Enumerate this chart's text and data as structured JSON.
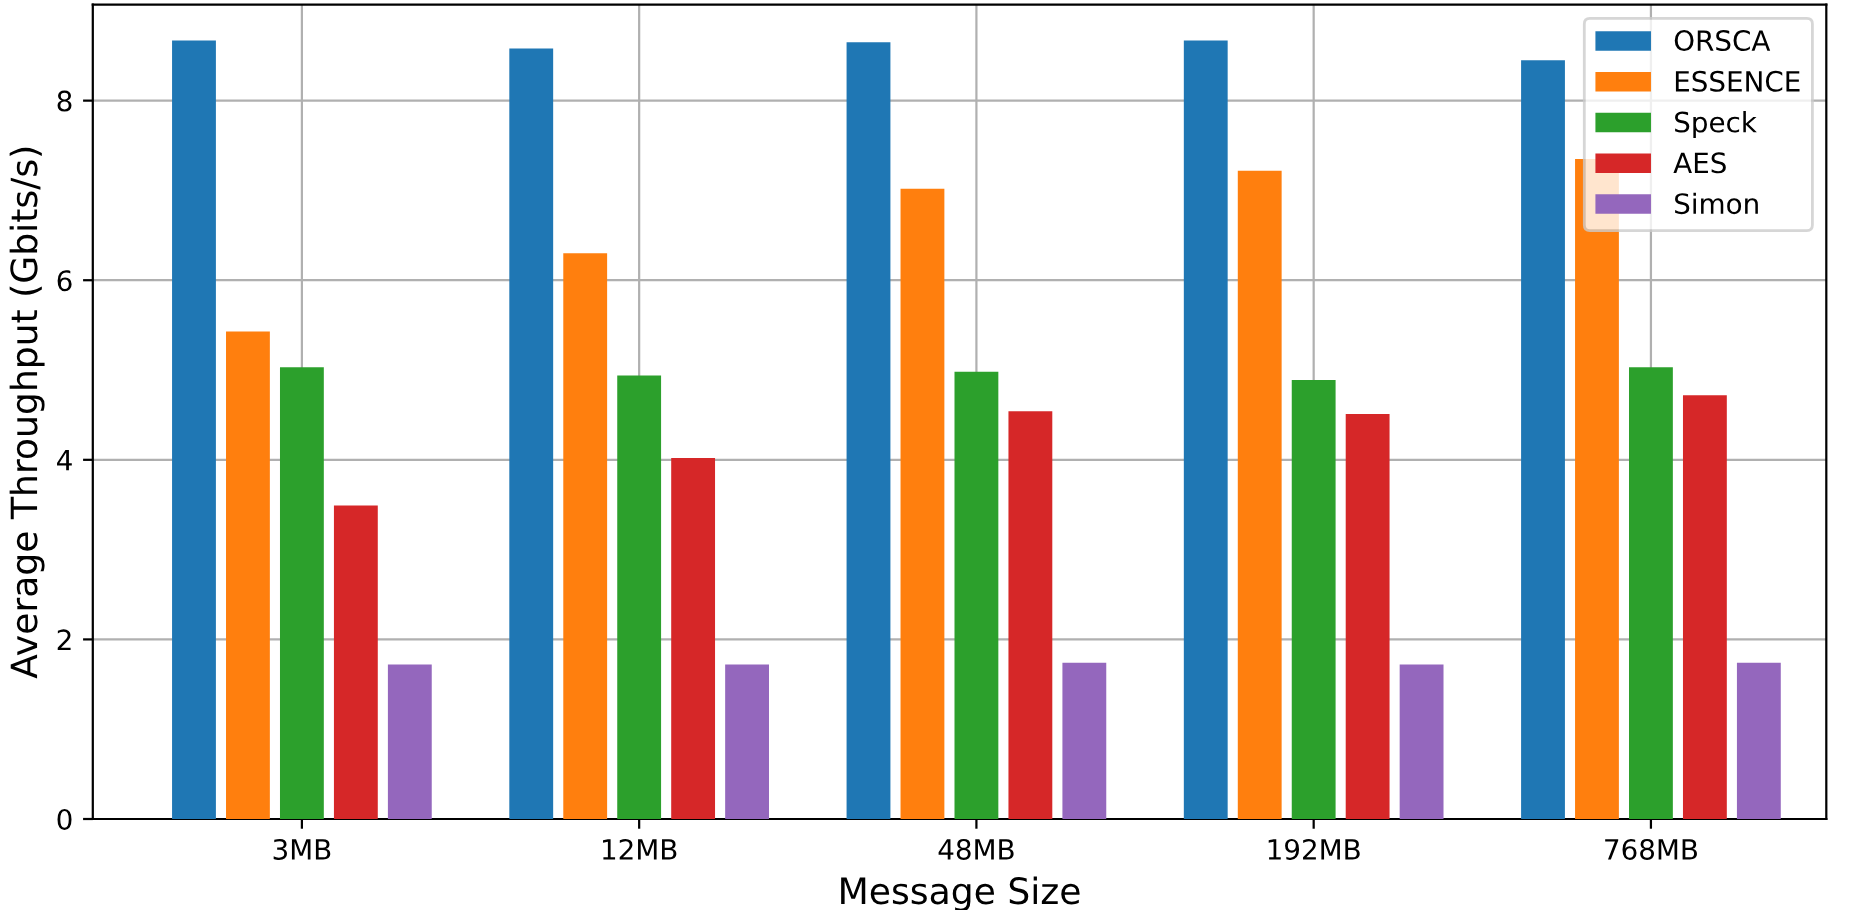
{
  "chart_data": {
    "type": "bar",
    "xlabel": "Message Size",
    "ylabel": "Average Throughput (Gbits/s)",
    "categories": [
      "3MB",
      "12MB",
      "48MB",
      "192MB",
      "768MB"
    ],
    "series": [
      {
        "name": "ORSCA",
        "color": "#1f77b4",
        "values": [
          8.67,
          8.58,
          8.65,
          8.67,
          8.45
        ]
      },
      {
        "name": "ESSENCE",
        "color": "#ff7f0e",
        "values": [
          5.43,
          6.3,
          7.02,
          7.22,
          7.35
        ]
      },
      {
        "name": "Speck",
        "color": "#2ca02c",
        "values": [
          5.03,
          4.94,
          4.98,
          4.89,
          5.03
        ]
      },
      {
        "name": "AES",
        "color": "#d62728",
        "values": [
          3.49,
          4.02,
          4.54,
          4.51,
          4.72
        ]
      },
      {
        "name": "Simon",
        "color": "#9467bd",
        "values": [
          1.72,
          1.72,
          1.74,
          1.72,
          1.74
        ]
      }
    ],
    "ylim": [
      0,
      9.07
    ],
    "yticks": [
      0,
      2,
      4,
      6,
      8
    ],
    "grid": true,
    "legend": "top right"
  }
}
